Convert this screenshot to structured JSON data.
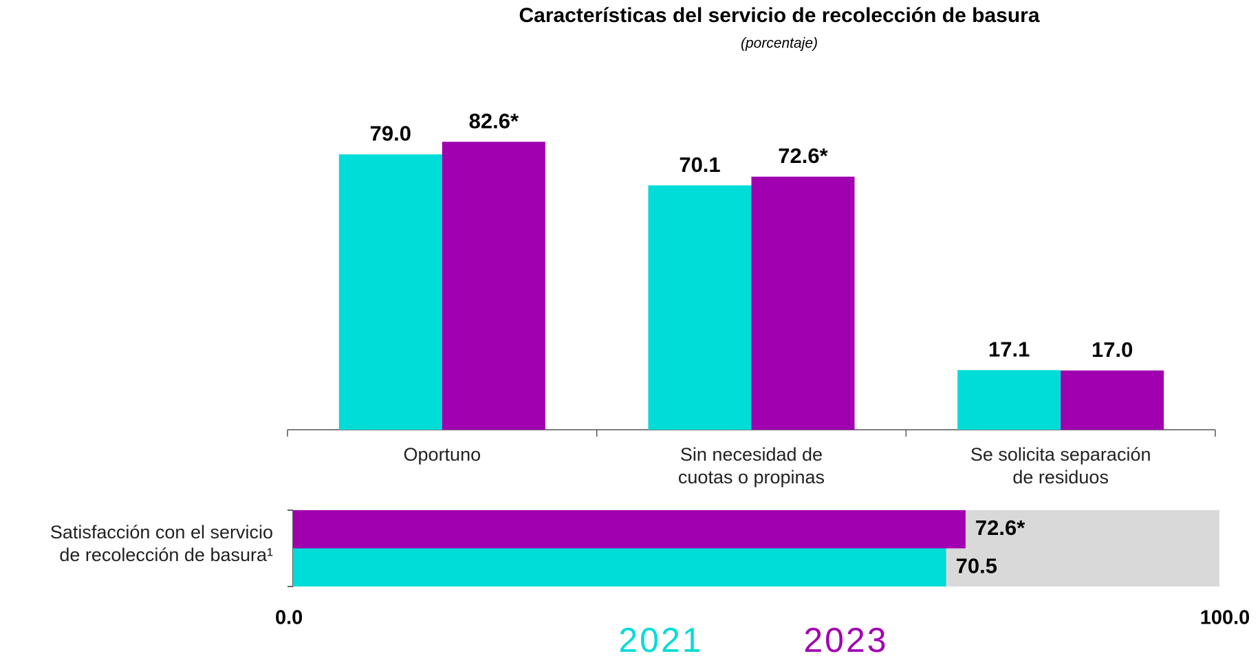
{
  "chart_data": [
    {
      "type": "bar",
      "orientation": "vertical",
      "title": "Características del servicio de recolección de basura",
      "subtitle": "(porcentaje)",
      "categories": [
        "Oportuno",
        "Sin necesidad de\ncuotas o propinas",
        "Se solicita separación\nde residuos"
      ],
      "series": [
        {
          "name": "2021",
          "color": "#00dcd8",
          "values": [
            79.0,
            70.1,
            17.1
          ],
          "value_labels": [
            "79.0",
            "70.1",
            "17.1"
          ]
        },
        {
          "name": "2023",
          "color": "#a000b0",
          "values": [
            82.6,
            72.6,
            17.0
          ],
          "value_labels": [
            "82.6*",
            "72.6*",
            "17.0"
          ]
        }
      ],
      "ylim": [
        0,
        100
      ]
    },
    {
      "type": "bar",
      "orientation": "horizontal",
      "categories": [
        "Satisfacción con el servicio\nde recolección de basura¹"
      ],
      "series": [
        {
          "name": "2023",
          "color": "#a000b0",
          "values": [
            72.6
          ],
          "value_labels": [
            "72.6*"
          ]
        },
        {
          "name": "2021",
          "color": "#00dcd8",
          "values": [
            70.5
          ],
          "value_labels": [
            "70.5"
          ]
        }
      ],
      "background_color": "#d9d9d9",
      "xlim": [
        0,
        100
      ],
      "xticks": [
        {
          "value": 0,
          "label": "0.0"
        },
        {
          "value": 100,
          "label": "100.0"
        }
      ]
    }
  ]
}
